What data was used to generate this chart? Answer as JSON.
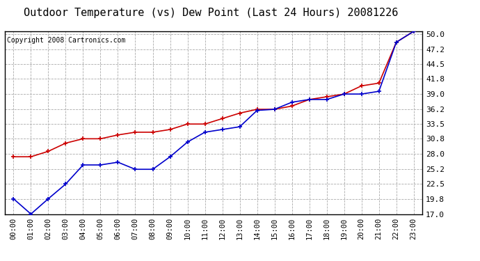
{
  "title": "Outdoor Temperature (vs) Dew Point (Last 24 Hours) 20081226",
  "copyright": "Copyright 2008 Cartronics.com",
  "x_labels": [
    "00:00",
    "01:00",
    "02:00",
    "03:00",
    "04:00",
    "05:00",
    "06:00",
    "07:00",
    "08:00",
    "09:00",
    "10:00",
    "11:00",
    "12:00",
    "13:00",
    "14:00",
    "15:00",
    "16:00",
    "17:00",
    "18:00",
    "19:00",
    "20:00",
    "21:00",
    "22:00",
    "23:00"
  ],
  "temp_data": [
    19.8,
    17.0,
    19.8,
    22.5,
    26.0,
    26.0,
    26.5,
    25.2,
    25.2,
    27.5,
    30.2,
    32.0,
    32.5,
    33.0,
    36.0,
    36.2,
    37.5,
    38.0,
    38.0,
    39.0,
    39.0,
    39.5,
    48.5,
    50.5
  ],
  "dew_data": [
    27.5,
    27.5,
    28.5,
    30.0,
    30.8,
    30.8,
    31.5,
    32.0,
    32.0,
    32.5,
    33.5,
    33.5,
    34.5,
    35.5,
    36.2,
    36.2,
    36.8,
    38.0,
    38.5,
    39.0,
    40.5,
    41.0,
    48.5,
    50.5
  ],
  "ylim_min": 17.0,
  "ylim_max": 50.5,
  "yticks": [
    17.0,
    19.8,
    22.5,
    25.2,
    28.0,
    30.8,
    33.5,
    36.2,
    39.0,
    41.8,
    44.5,
    47.2,
    50.0
  ],
  "ytick_labels": [
    "17.0",
    "19.8",
    "22.5",
    "25.2",
    "28.0",
    "30.8",
    "33.5",
    "36.2",
    "39.0",
    "41.8",
    "44.5",
    "47.2",
    "50.0"
  ],
  "temp_color": "#0000cc",
  "dew_color": "#cc0000",
  "bg_color": "#ffffff",
  "grid_color": "#aaaaaa",
  "title_fontsize": 11,
  "copyright_fontsize": 7,
  "tick_fontsize": 7.5,
  "ytick_fontsize": 8
}
